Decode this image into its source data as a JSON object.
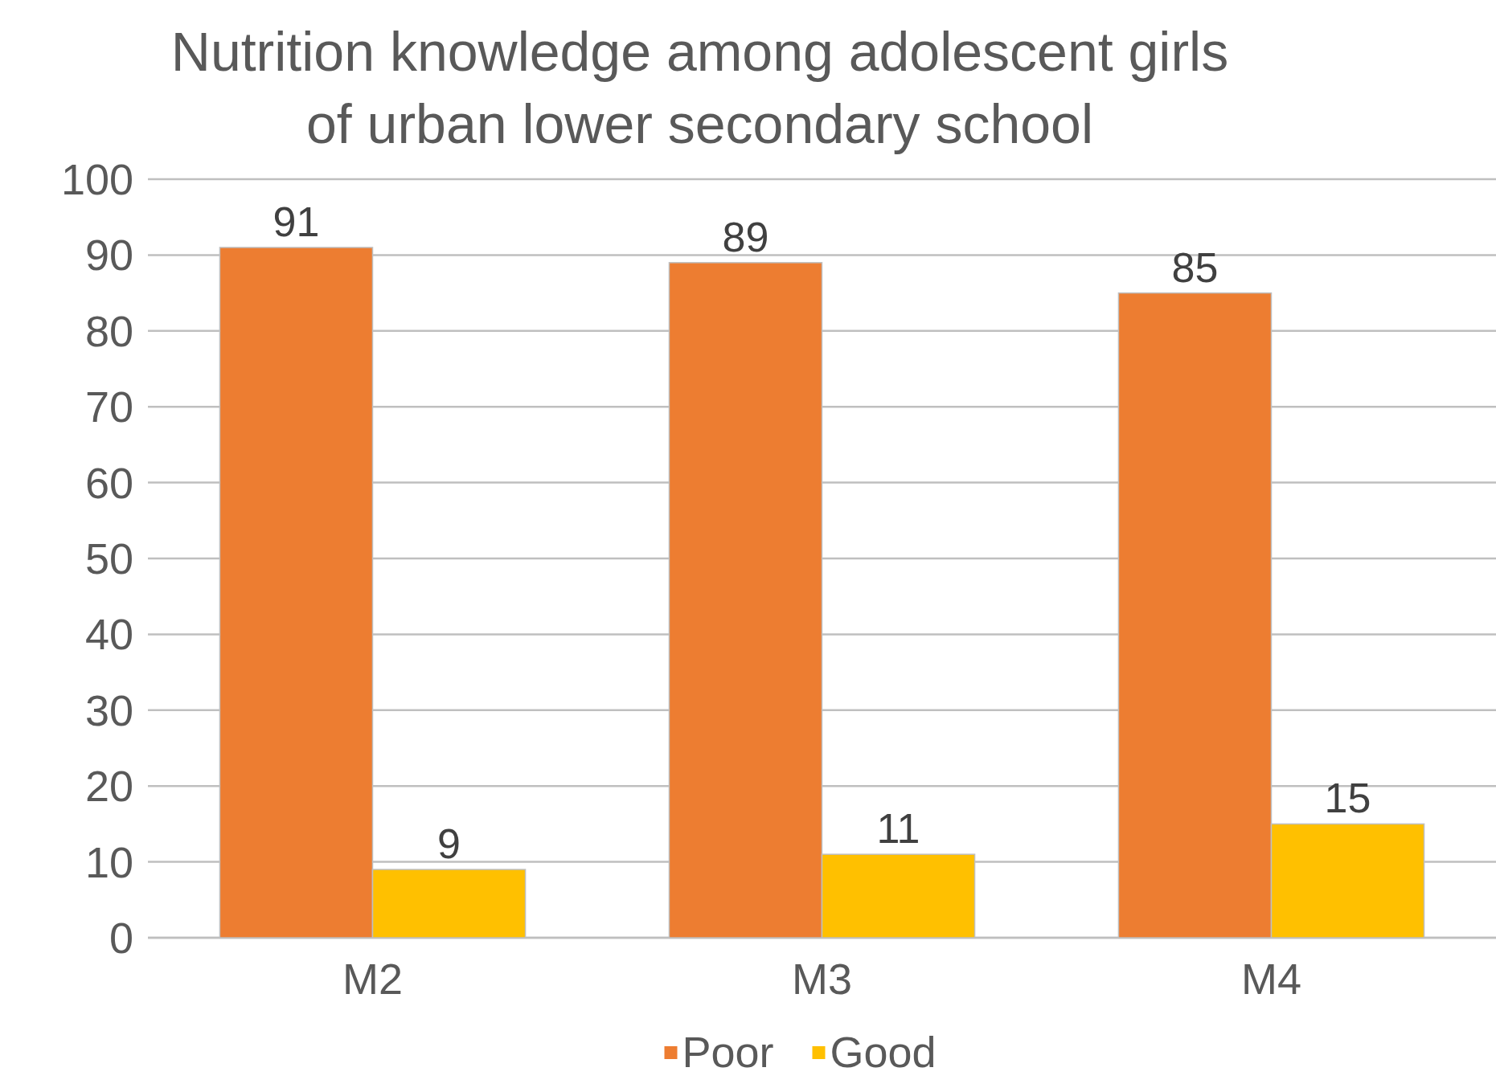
{
  "chart_data": {
    "type": "bar",
    "title": "Nutrition knowledge among adolescent girls of urban lower secondary school",
    "categories": [
      "M2",
      "M3",
      "M4"
    ],
    "series": [
      {
        "name": "Poor",
        "color": "#ed7d31",
        "values": [
          91,
          89,
          85
        ]
      },
      {
        "name": "Good",
        "color": "#ffc000",
        "values": [
          9,
          11,
          15
        ]
      }
    ],
    "ylim": [
      0,
      100
    ],
    "yticks": [
      0,
      10,
      20,
      30,
      40,
      50,
      60,
      70,
      80,
      90,
      100
    ],
    "grid": "y",
    "legend": "bottom",
    "data_labels": true
  }
}
